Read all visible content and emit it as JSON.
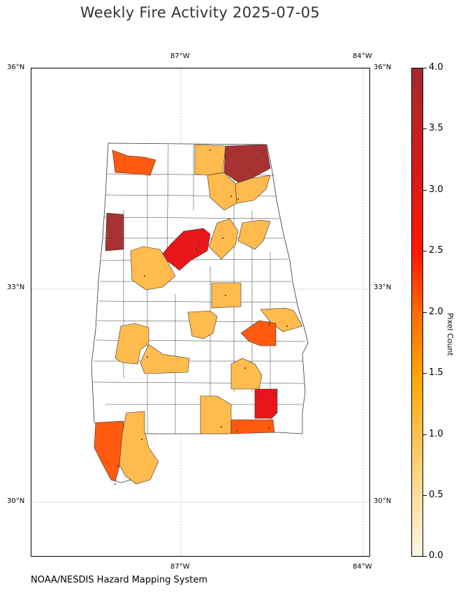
{
  "title": "Weekly Fire Activity 2025-07-05",
  "source": "NOAA/NESDIS Hazard Mapping System",
  "map": {
    "lon_ticks_top": [
      "87°W",
      "84°W"
    ],
    "lon_ticks_bottom": [
      "87°W",
      "84°W"
    ],
    "lat_ticks_left": [
      "36°N",
      "33°N",
      "30°N"
    ],
    "lat_ticks_right": [
      "36°N",
      "33°N",
      "30°N"
    ],
    "colors": {
      "value_1": "#ffbb4d",
      "value_2": "#ff5a0f",
      "value_3": "#e8161a",
      "value_4": "#a83232",
      "county_stroke": "#333333",
      "gridline": "#aaaaaa"
    },
    "highlighted_counties": [
      {
        "value": 4,
        "region": "northeast"
      },
      {
        "value": 2,
        "region": "northwest"
      },
      {
        "value": 4,
        "region": "west"
      },
      {
        "value": 3,
        "region": "central"
      },
      {
        "value": 3,
        "region": "southeast"
      },
      {
        "value": 2,
        "region": "east"
      },
      {
        "value": 2,
        "region": "southwest"
      },
      {
        "value": 2,
        "region": "south"
      }
    ]
  },
  "colorbar": {
    "label": "Pixel Count",
    "ticks": [
      "4.0",
      "3.5",
      "3.0",
      "2.5",
      "2.0",
      "1.5",
      "1.0",
      "0.5",
      "0.0"
    ],
    "min": 0,
    "max": 4
  }
}
